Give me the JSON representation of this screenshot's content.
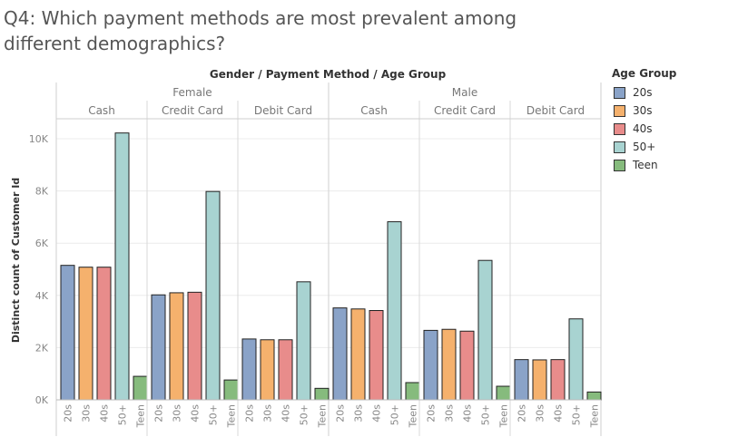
{
  "title": "Q4: Which payment methods are most prevalent among different demographics?",
  "chart_data": {
    "type": "bar",
    "column_header_title": "Gender  /  Payment Method  /  Age Group",
    "ylabel": "Distinct count of Customer Id",
    "ylim": [
      0,
      11000
    ],
    "yticks": [
      0,
      2000,
      4000,
      6000,
      8000,
      10000
    ],
    "ytick_labels": [
      "0K",
      "2K",
      "4K",
      "6K",
      "8K",
      "10K"
    ],
    "grid": true,
    "legend_position": "right",
    "age_groups": [
      "20s",
      "30s",
      "40s",
      "50+",
      "Teen"
    ],
    "colors": {
      "20s": "#8aa3c8",
      "30s": "#f5b16d",
      "40s": "#e88c8b",
      "50+": "#a8d3d1",
      "Teen": "#86bb7d"
    },
    "groups": [
      {
        "gender": "Female",
        "payment_methods": [
          {
            "name": "Cash",
            "values": [
              5150,
              5080,
              5080,
              10220,
              900
            ]
          },
          {
            "name": "Credit Card",
            "values": [
              4020,
              4100,
              4120,
              7980,
              760
            ]
          },
          {
            "name": "Debit Card",
            "values": [
              2330,
              2300,
              2300,
              4520,
              440
            ]
          }
        ]
      },
      {
        "gender": "Male",
        "payment_methods": [
          {
            "name": "Cash",
            "values": [
              3520,
              3480,
              3420,
              6820,
              660
            ]
          },
          {
            "name": "Credit Card",
            "values": [
              2660,
              2700,
              2630,
              5340,
              520
            ]
          },
          {
            "name": "Debit Card",
            "values": [
              1540,
              1530,
              1540,
              3100,
              300
            ]
          }
        ]
      }
    ]
  },
  "legend": {
    "title": "Age Group",
    "items": [
      {
        "label": "20s",
        "color": "#8aa3c8"
      },
      {
        "label": "30s",
        "color": "#f5b16d"
      },
      {
        "label": "40s",
        "color": "#e88c8b"
      },
      {
        "label": "50+",
        "color": "#a8d3d1"
      },
      {
        "label": "Teen",
        "color": "#86bb7d"
      }
    ]
  }
}
